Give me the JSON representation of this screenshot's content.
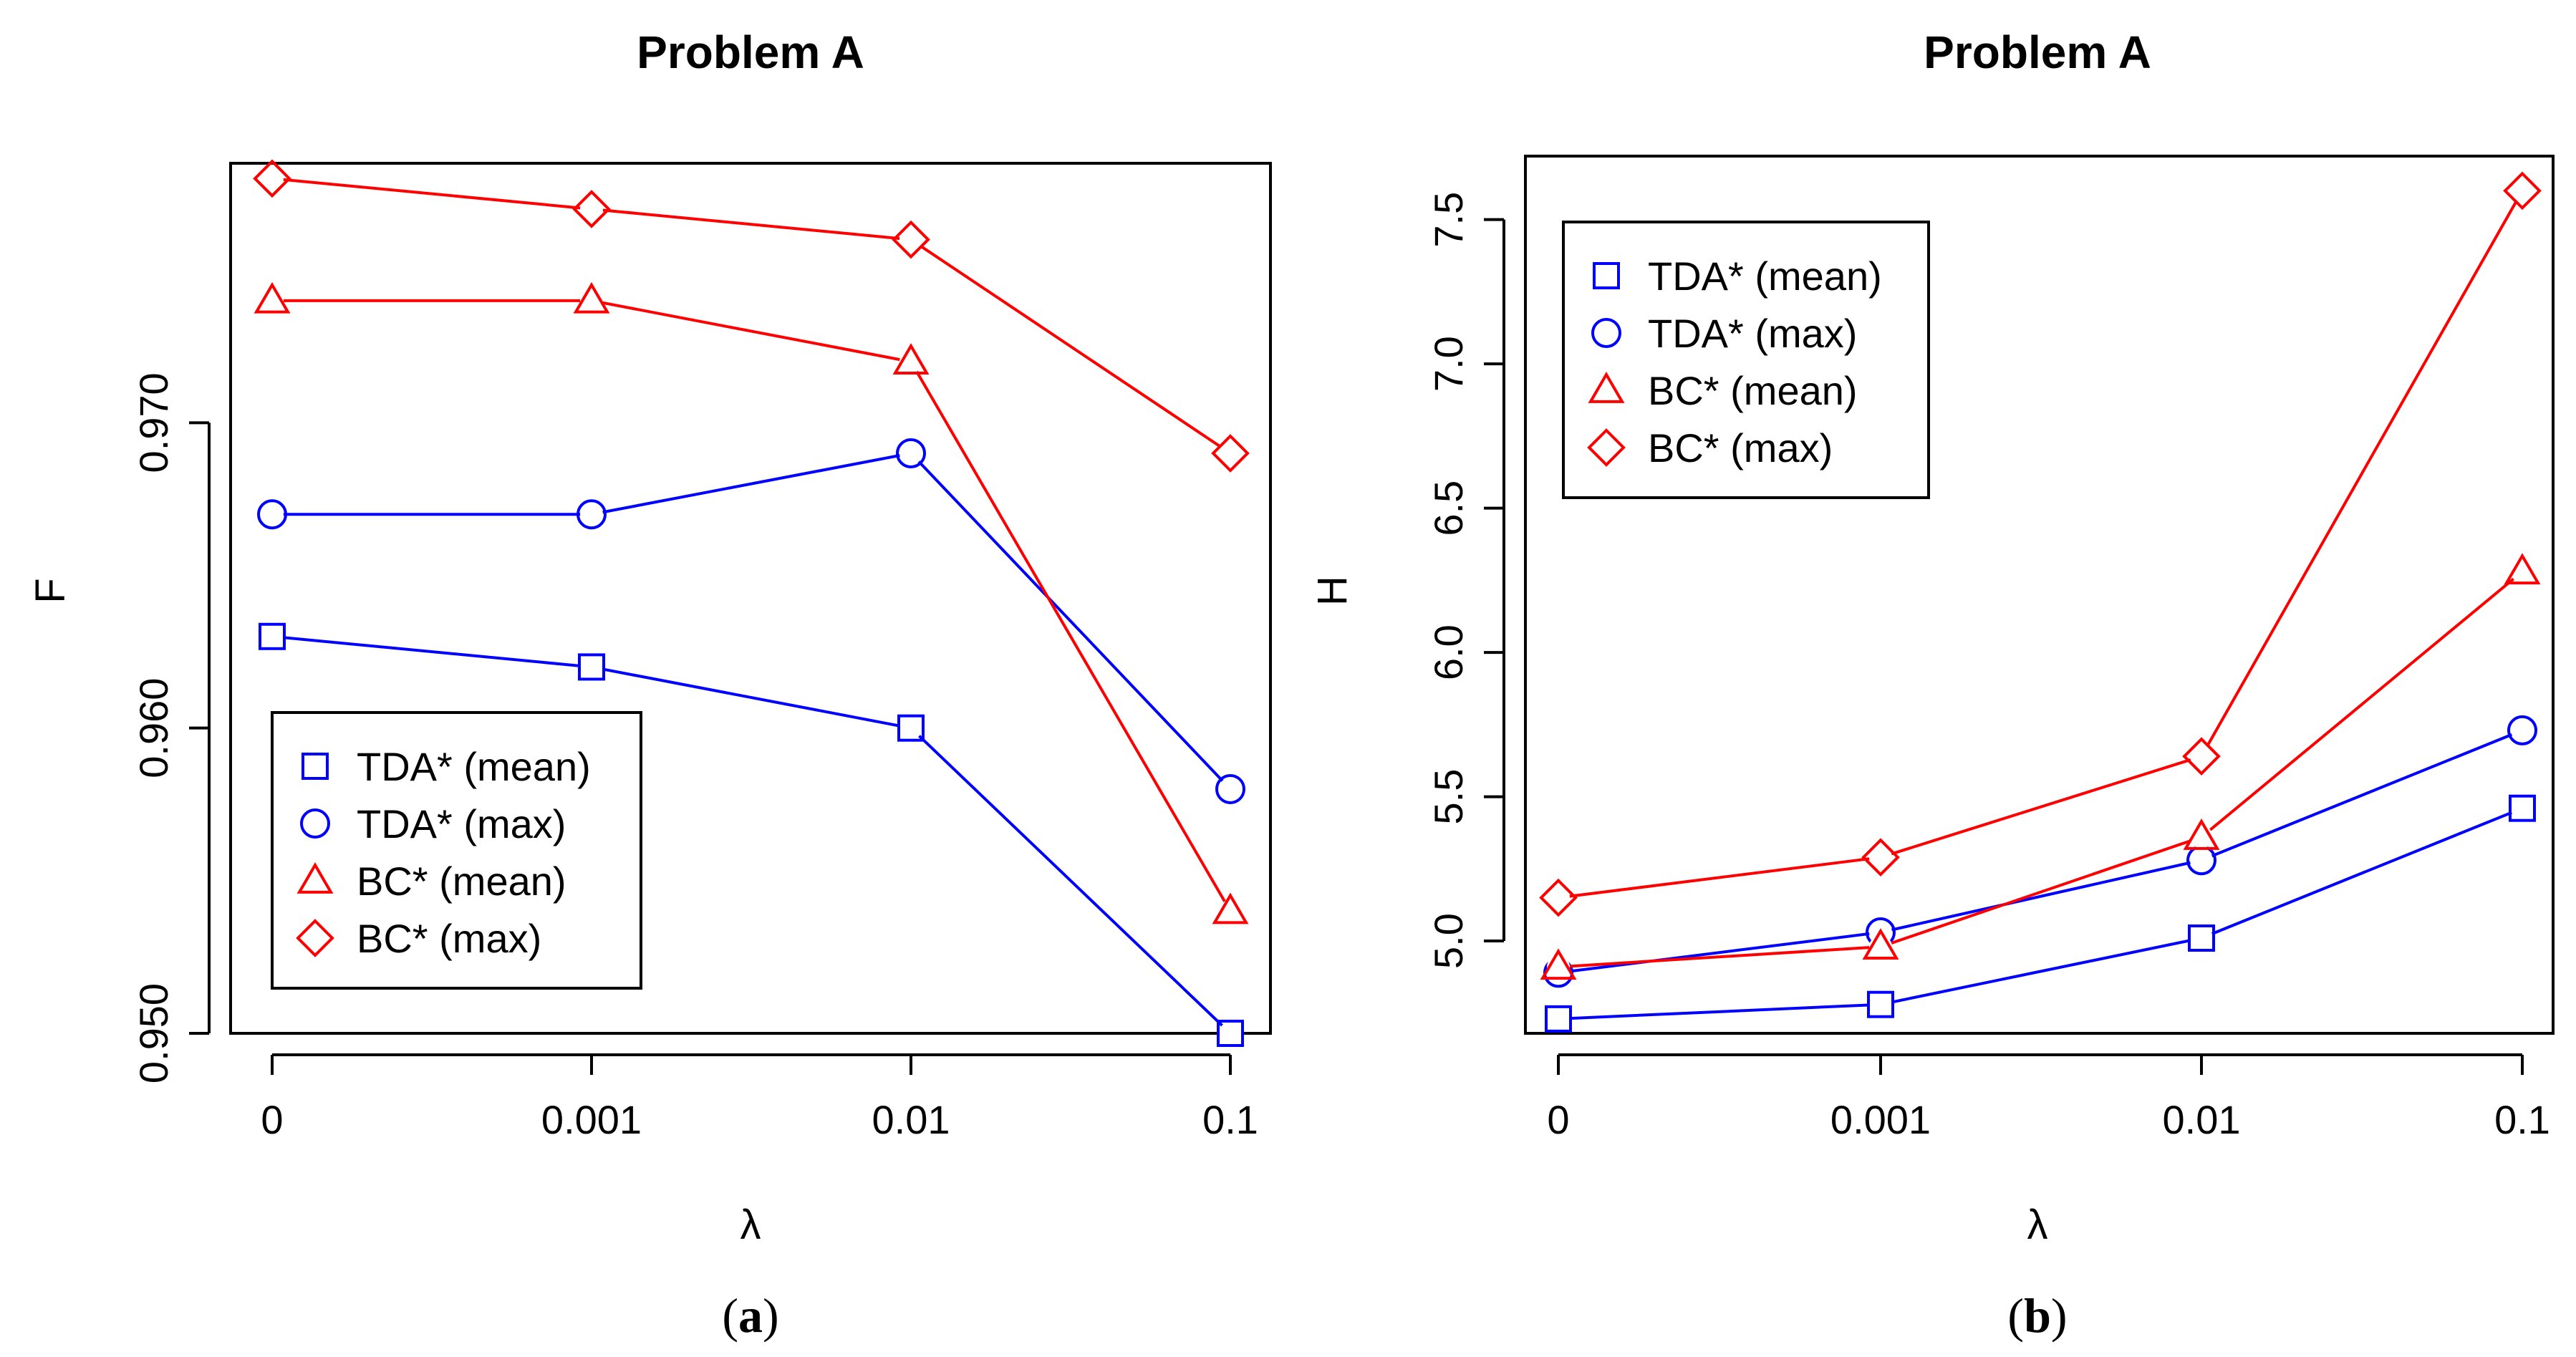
{
  "chart_data": [
    {
      "type": "line",
      "id": "a",
      "title": "Problem A",
      "caption": "a",
      "xlabel": "λ",
      "ylabel": "F",
      "categories": [
        "0",
        "0.001",
        "0.01",
        "0.1"
      ],
      "ylim": [
        0.95,
        0.9785
      ],
      "yticks": [
        "0.950",
        "0.960",
        "0.970"
      ],
      "grid": false,
      "legend_position": "bottom-left",
      "series": [
        {
          "name": "TDA* (mean)",
          "color": "#0000ff",
          "marker": "square",
          "values": [
            0.963,
            0.962,
            0.96,
            0.95
          ]
        },
        {
          "name": "TDA* (max)",
          "color": "#0000ff",
          "marker": "circle",
          "values": [
            0.967,
            0.967,
            0.969,
            0.958
          ]
        },
        {
          "name": "BC* (mean)",
          "color": "#ff0000",
          "marker": "triangle",
          "values": [
            0.974,
            0.974,
            0.972,
            0.954
          ]
        },
        {
          "name": "BC* (max)",
          "color": "#ff0000",
          "marker": "diamond",
          "values": [
            0.978,
            0.977,
            0.976,
            0.969
          ]
        }
      ]
    },
    {
      "type": "line",
      "id": "b",
      "title": "Problem A",
      "caption": "b",
      "xlabel": "λ",
      "ylabel": "H",
      "categories": [
        "0",
        "0.001",
        "0.01",
        "0.1"
      ],
      "ylim": [
        4.68,
        7.72
      ],
      "yticks": [
        "5.0",
        "5.5",
        "6.0",
        "6.5",
        "7.0",
        "7.5"
      ],
      "grid": false,
      "legend_position": "top-left",
      "series": [
        {
          "name": "TDA* (mean)",
          "color": "#0000ff",
          "marker": "square",
          "values": [
            4.73,
            4.78,
            5.01,
            5.46
          ]
        },
        {
          "name": "TDA* (max)",
          "color": "#0000ff",
          "marker": "circle",
          "values": [
            4.89,
            5.03,
            5.28,
            5.73
          ]
        },
        {
          "name": "BC* (mean)",
          "color": "#ff0000",
          "marker": "triangle",
          "values": [
            4.91,
            4.98,
            5.36,
            6.28
          ]
        },
        {
          "name": "BC* (max)",
          "color": "#ff0000",
          "marker": "diamond",
          "values": [
            5.15,
            5.29,
            5.64,
            7.6
          ]
        }
      ]
    }
  ]
}
